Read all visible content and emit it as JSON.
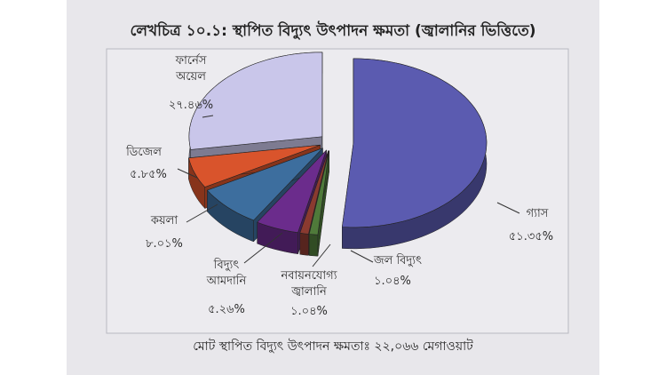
{
  "chart_data": {
    "type": "pie",
    "title": "লেখচিত্র ১০.১: স্থাপিত বিদ্যুৎ উৎপাদন ক্ষমতা (জ্বালানির ভিত্তিতে)",
    "categories": [
      "গ্যাস",
      "জল বিদ্যুৎ",
      "নবায়নযোগ্য জ্বালানি",
      "বিদ্যুৎ আমদানি",
      "কয়লা",
      "ডিজেল",
      "ফার্নেস অয়েল"
    ],
    "values": [
      51.35,
      1.04,
      1.04,
      5.26,
      8.01,
      5.85,
      27.46
    ],
    "value_labels": [
      "৫১.৩৫%",
      "১.০৪%",
      "১.০৪%",
      "৫.২৬%",
      "৮.০১%",
      "৫.৮৫%",
      "২৭.৪৬%"
    ],
    "colors": [
      "#5b5bb0",
      "#4f7a3a",
      "#8a3a30",
      "#6b2c8c",
      "#3d6e9e",
      "#d9542c",
      "#c9c6ea"
    ],
    "footnote": "মোট স্থাপিত বিদ্যুৎ উৎপাদন ক্ষমতাঃ ২২,০৬৬ মেগাওয়াট"
  }
}
